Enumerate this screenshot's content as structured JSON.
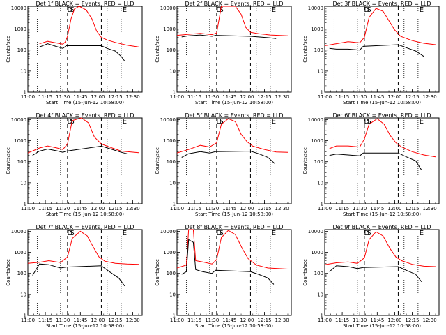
{
  "chart_data": {
    "type": "line",
    "xlabel": "Start Time (15-Jun-12 10:58:00)",
    "ylabel": "Counts/sec",
    "ylim": [
      1,
      12000
    ],
    "yscale": "log",
    "yticks": [
      "1",
      "10",
      "100",
      "1000",
      "10000"
    ],
    "xrange": [
      "11:00",
      "12:38"
    ],
    "xticks": [
      "11:00",
      "11:15",
      "11:30",
      "11:45",
      "12:00",
      "12:15",
      "12:30"
    ],
    "dotted_lines": [
      "11:08",
      "11:28",
      "12:08",
      "12:20"
    ],
    "dashed_lines": [
      "11:34",
      "12:03"
    ],
    "markers": [
      {
        "label": "D",
        "time": "11:36"
      },
      {
        "label": "S",
        "time": "11:38"
      },
      {
        "label": "E",
        "time": "12:23"
      }
    ],
    "series_colors": {
      "events": "#000000",
      "lld": "#ff0000"
    },
    "panels": [
      {
        "title": "Det 1f BLACK = Events, RED = LLD",
        "lld": [
          [
            "11:10",
            200
          ],
          [
            "11:17",
            260
          ],
          [
            "11:24",
            220
          ],
          [
            "11:30",
            190
          ],
          [
            "11:32",
            240
          ],
          [
            "11:34",
            450
          ],
          [
            "11:37",
            3000
          ],
          [
            "11:40",
            9000
          ],
          [
            "11:44",
            13000
          ],
          [
            "11:50",
            8000
          ],
          [
            "11:55",
            3000
          ],
          [
            "11:59",
            800
          ],
          [
            "12:03",
            400
          ],
          [
            "12:08",
            300
          ],
          [
            "12:15",
            230
          ],
          [
            "12:25",
            170
          ],
          [
            "12:35",
            140
          ]
        ],
        "events": [
          [
            "11:10",
            140
          ],
          [
            "11:17",
            200
          ],
          [
            "11:24",
            150
          ],
          [
            "11:30",
            120
          ],
          [
            "11:33",
            160
          ],
          [
            "12:03",
            160
          ],
          [
            "12:08",
            120
          ],
          [
            "12:15",
            90
          ],
          [
            "12:20",
            50
          ],
          [
            "12:23",
            30
          ]
        ]
      },
      {
        "title": "Det 2f BLACK = Events, RED = LLD",
        "lld": [
          [
            "11:00",
            500
          ],
          [
            "11:10",
            560
          ],
          [
            "11:20",
            620
          ],
          [
            "11:30",
            540
          ],
          [
            "11:34",
            650
          ],
          [
            "11:38",
            12000
          ],
          [
            "11:50",
            12000
          ],
          [
            "11:55",
            5000
          ],
          [
            "11:59",
            1200
          ],
          [
            "12:03",
            700
          ],
          [
            "12:10",
            600
          ],
          [
            "12:20",
            520
          ],
          [
            "12:35",
            480
          ]
        ],
        "events": [
          [
            "11:04",
            420
          ],
          [
            "11:10",
            480
          ],
          [
            "11:20",
            520
          ],
          [
            "11:30",
            450
          ],
          [
            "11:33",
            500
          ],
          [
            "12:03",
            450
          ],
          [
            "12:10",
            420
          ],
          [
            "12:20",
            380
          ],
          [
            "12:25",
            350
          ]
        ]
      },
      {
        "title": "Det 3f BLACK = Events, RED = LLD",
        "lld": [
          [
            "11:00",
            160
          ],
          [
            "11:10",
            200
          ],
          [
            "11:20",
            250
          ],
          [
            "11:30",
            220
          ],
          [
            "11:34",
            400
          ],
          [
            "11:38",
            3500
          ],
          [
            "11:44",
            9500
          ],
          [
            "11:50",
            7000
          ],
          [
            "11:55",
            2500
          ],
          [
            "12:00",
            900
          ],
          [
            "12:05",
            450
          ],
          [
            "12:15",
            280
          ],
          [
            "12:25",
            210
          ],
          [
            "12:35",
            180
          ]
        ],
        "events": [
          [
            "11:04",
            120
          ],
          [
            "11:10",
            110
          ],
          [
            "11:20",
            110
          ],
          [
            "11:30",
            100
          ],
          [
            "11:33",
            150
          ],
          [
            "12:03",
            180
          ],
          [
            "12:10",
            130
          ],
          [
            "12:18",
            90
          ],
          [
            "12:25",
            50
          ]
        ]
      },
      {
        "title": "Det 4f BLACK = Events, RED = LLD",
        "lld": [
          [
            "11:00",
            260
          ],
          [
            "11:10",
            450
          ],
          [
            "11:17",
            560
          ],
          [
            "11:25",
            450
          ],
          [
            "11:30",
            380
          ],
          [
            "11:34",
            700
          ],
          [
            "11:38",
            9000
          ],
          [
            "11:46",
            12000
          ],
          [
            "11:52",
            7000
          ],
          [
            "11:57",
            1500
          ],
          [
            "12:03",
            700
          ],
          [
            "12:10",
            500
          ],
          [
            "12:20",
            320
          ],
          [
            "12:35",
            270
          ]
        ],
        "events": [
          [
            "11:04",
            200
          ],
          [
            "11:10",
            320
          ],
          [
            "11:17",
            400
          ],
          [
            "11:25",
            330
          ],
          [
            "11:30",
            280
          ],
          [
            "11:33",
            320
          ],
          [
            "12:03",
            550
          ],
          [
            "12:10",
            420
          ],
          [
            "12:20",
            280
          ],
          [
            "12:25",
            240
          ]
        ]
      },
      {
        "title": "Det 5f BLACK = Events, RED = LLD",
        "lld": [
          [
            "11:00",
            260
          ],
          [
            "11:10",
            380
          ],
          [
            "11:20",
            600
          ],
          [
            "11:28",
            500
          ],
          [
            "11:34",
            800
          ],
          [
            "11:38",
            6000
          ],
          [
            "11:44",
            11000
          ],
          [
            "11:50",
            8000
          ],
          [
            "11:55",
            2000
          ],
          [
            "12:00",
            900
          ],
          [
            "12:05",
            550
          ],
          [
            "12:15",
            380
          ],
          [
            "12:25",
            290
          ],
          [
            "12:35",
            280
          ]
        ],
        "events": [
          [
            "11:04",
            160
          ],
          [
            "11:10",
            240
          ],
          [
            "11:20",
            300
          ],
          [
            "11:28",
            260
          ],
          [
            "11:33",
            300
          ],
          [
            "12:03",
            320
          ],
          [
            "12:10",
            240
          ],
          [
            "12:18",
            160
          ],
          [
            "12:24",
            80
          ]
        ]
      },
      {
        "title": "Det 6f BLACK = Events, RED = LLD",
        "lld": [
          [
            "11:04",
            420
          ],
          [
            "11:10",
            560
          ],
          [
            "11:20",
            560
          ],
          [
            "11:30",
            500
          ],
          [
            "11:34",
            1200
          ],
          [
            "11:38",
            6000
          ],
          [
            "11:45",
            11000
          ],
          [
            "11:51",
            6000
          ],
          [
            "11:56",
            1800
          ],
          [
            "12:01",
            800
          ],
          [
            "12:06",
            500
          ],
          [
            "12:15",
            300
          ],
          [
            "12:25",
            210
          ],
          [
            "12:35",
            170
          ]
        ],
        "events": [
          [
            "11:04",
            200
          ],
          [
            "11:10",
            230
          ],
          [
            "11:20",
            210
          ],
          [
            "11:30",
            190
          ],
          [
            "11:33",
            260
          ],
          [
            "12:03",
            260
          ],
          [
            "12:10",
            170
          ],
          [
            "12:18",
            110
          ],
          [
            "12:23",
            40
          ]
        ]
      },
      {
        "title": "Det 7f BLACK = Events, RED = LLD",
        "lld": [
          [
            "11:00",
            300
          ],
          [
            "11:10",
            340
          ],
          [
            "11:18",
            400
          ],
          [
            "11:28",
            330
          ],
          [
            "11:34",
            600
          ],
          [
            "11:38",
            4500
          ],
          [
            "11:45",
            10000
          ],
          [
            "11:51",
            6000
          ],
          [
            "11:56",
            1800
          ],
          [
            "12:01",
            600
          ],
          [
            "12:06",
            380
          ],
          [
            "12:15",
            300
          ],
          [
            "12:25",
            280
          ],
          [
            "12:35",
            270
          ]
        ],
        "events": [
          [
            "11:04",
            80
          ],
          [
            "11:10",
            280
          ],
          [
            "11:18",
            260
          ],
          [
            "11:28",
            180
          ],
          [
            "11:33",
            200
          ],
          [
            "12:03",
            230
          ],
          [
            "12:10",
            120
          ],
          [
            "12:18",
            60
          ],
          [
            "12:23",
            25
          ]
        ]
      },
      {
        "title": "Det 8f BLACK = Events, RED = LLD",
        "lld": [
          [
            "11:00",
            180
          ],
          [
            "11:08",
            250
          ],
          [
            "11:10",
            12000
          ],
          [
            "11:14",
            12000
          ],
          [
            "11:16",
            400
          ],
          [
            "11:22",
            350
          ],
          [
            "11:30",
            280
          ],
          [
            "11:34",
            450
          ],
          [
            "11:38",
            5000
          ],
          [
            "11:44",
            11000
          ],
          [
            "11:50",
            7000
          ],
          [
            "11:56",
            1500
          ],
          [
            "12:01",
            500
          ],
          [
            "12:08",
            250
          ],
          [
            "12:18",
            180
          ],
          [
            "12:35",
            160
          ]
        ],
        "events": [
          [
            "11:04",
            90
          ],
          [
            "11:08",
            120
          ],
          [
            "11:10",
            4000
          ],
          [
            "11:14",
            3000
          ],
          [
            "11:16",
            150
          ],
          [
            "11:22",
            120
          ],
          [
            "11:30",
            100
          ],
          [
            "11:33",
            140
          ],
          [
            "12:03",
            120
          ],
          [
            "12:10",
            90
          ],
          [
            "12:18",
            60
          ],
          [
            "12:23",
            30
          ]
        ]
      },
      {
        "title": "Det 9f BLACK = Events, RED = LLD",
        "lld": [
          [
            "11:00",
            260
          ],
          [
            "11:10",
            320
          ],
          [
            "11:20",
            350
          ],
          [
            "11:28",
            300
          ],
          [
            "11:34",
            550
          ],
          [
            "11:38",
            4000
          ],
          [
            "11:44",
            9500
          ],
          [
            "11:50",
            6000
          ],
          [
            "11:56",
            1500
          ],
          [
            "12:01",
            600
          ],
          [
            "12:06",
            400
          ],
          [
            "12:15",
            270
          ],
          [
            "12:25",
            220
          ],
          [
            "12:35",
            210
          ]
        ],
        "events": [
          [
            "11:04",
            120
          ],
          [
            "11:10",
            230
          ],
          [
            "11:20",
            210
          ],
          [
            "11:28",
            170
          ],
          [
            "11:33",
            190
          ],
          [
            "12:03",
            210
          ],
          [
            "12:10",
            140
          ],
          [
            "12:18",
            90
          ],
          [
            "12:23",
            40
          ]
        ]
      }
    ]
  }
}
